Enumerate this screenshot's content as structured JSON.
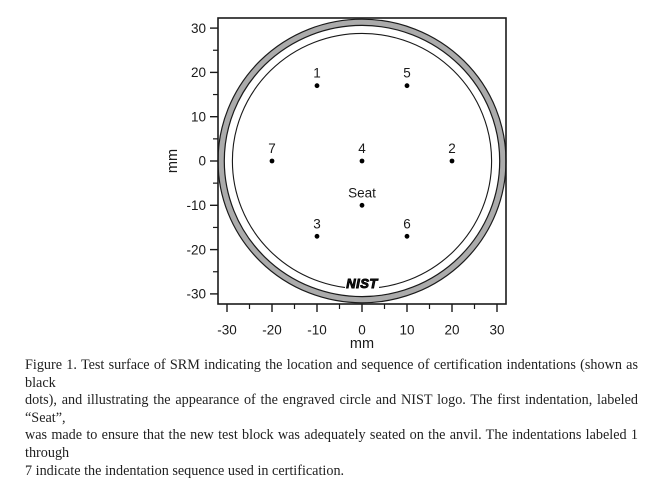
{
  "page": {
    "background": "#ffffff"
  },
  "chart_data": {
    "type": "scatter",
    "title": "",
    "xlabel": "mm",
    "ylabel": "mm",
    "xlim": [
      -32,
      32
    ],
    "ylim": [
      -32.3,
      32.3
    ],
    "x_major_ticks": [
      -30,
      -20,
      -10,
      0,
      10,
      20,
      30
    ],
    "y_major_ticks": [
      -30,
      -20,
      -10,
      0,
      10,
      20,
      30
    ],
    "minor_tick_step": 5,
    "grid": false,
    "legend": false,
    "point_color": "#000000",
    "points": [
      {
        "label": "1",
        "x": -10,
        "y": 17
      },
      {
        "label": "5",
        "x": 10,
        "y": 17
      },
      {
        "label": "7",
        "x": -20,
        "y": 0
      },
      {
        "label": "4",
        "x": 0,
        "y": 0
      },
      {
        "label": "2",
        "x": 20,
        "y": 0
      },
      {
        "label": "Seat",
        "x": 0,
        "y": -10
      },
      {
        "label": "3",
        "x": -10,
        "y": -17
      },
      {
        "label": "6",
        "x": 10,
        "y": -17
      }
    ],
    "circles": [
      {
        "name": "engraved-ring",
        "radius_mm": 31.3,
        "stroke_width_mm": 1.25,
        "stroke": "#ababab"
      },
      {
        "name": "engraved-ring-outer-edge",
        "radius_mm": 32.0,
        "stroke_width_mm": 0.27,
        "stroke": "#1a1a1a"
      },
      {
        "name": "engraved-ring-inner-edge",
        "radius_mm": 30.6,
        "stroke_width_mm": 0.27,
        "stroke": "#1a1a1a"
      },
      {
        "name": "inner-circle",
        "radius_mm": 28.8,
        "stroke_width_mm": 0.25,
        "stroke": "#1a1a1a"
      }
    ],
    "nist_logo_text": "NIST"
  },
  "caption": {
    "lines": [
      "Figure 1.  Test surface of SRM indicating the location and sequence of certification indentations (shown as black",
      "dots), and illustrating the appearance of the engraved circle and NIST logo.  The first indentation, labeled “Seat”,",
      "was made to ensure that the new test block was adequately seated on the anvil.  The indentations labeled 1 through",
      "7 indicate the indentation sequence used in certification."
    ]
  }
}
